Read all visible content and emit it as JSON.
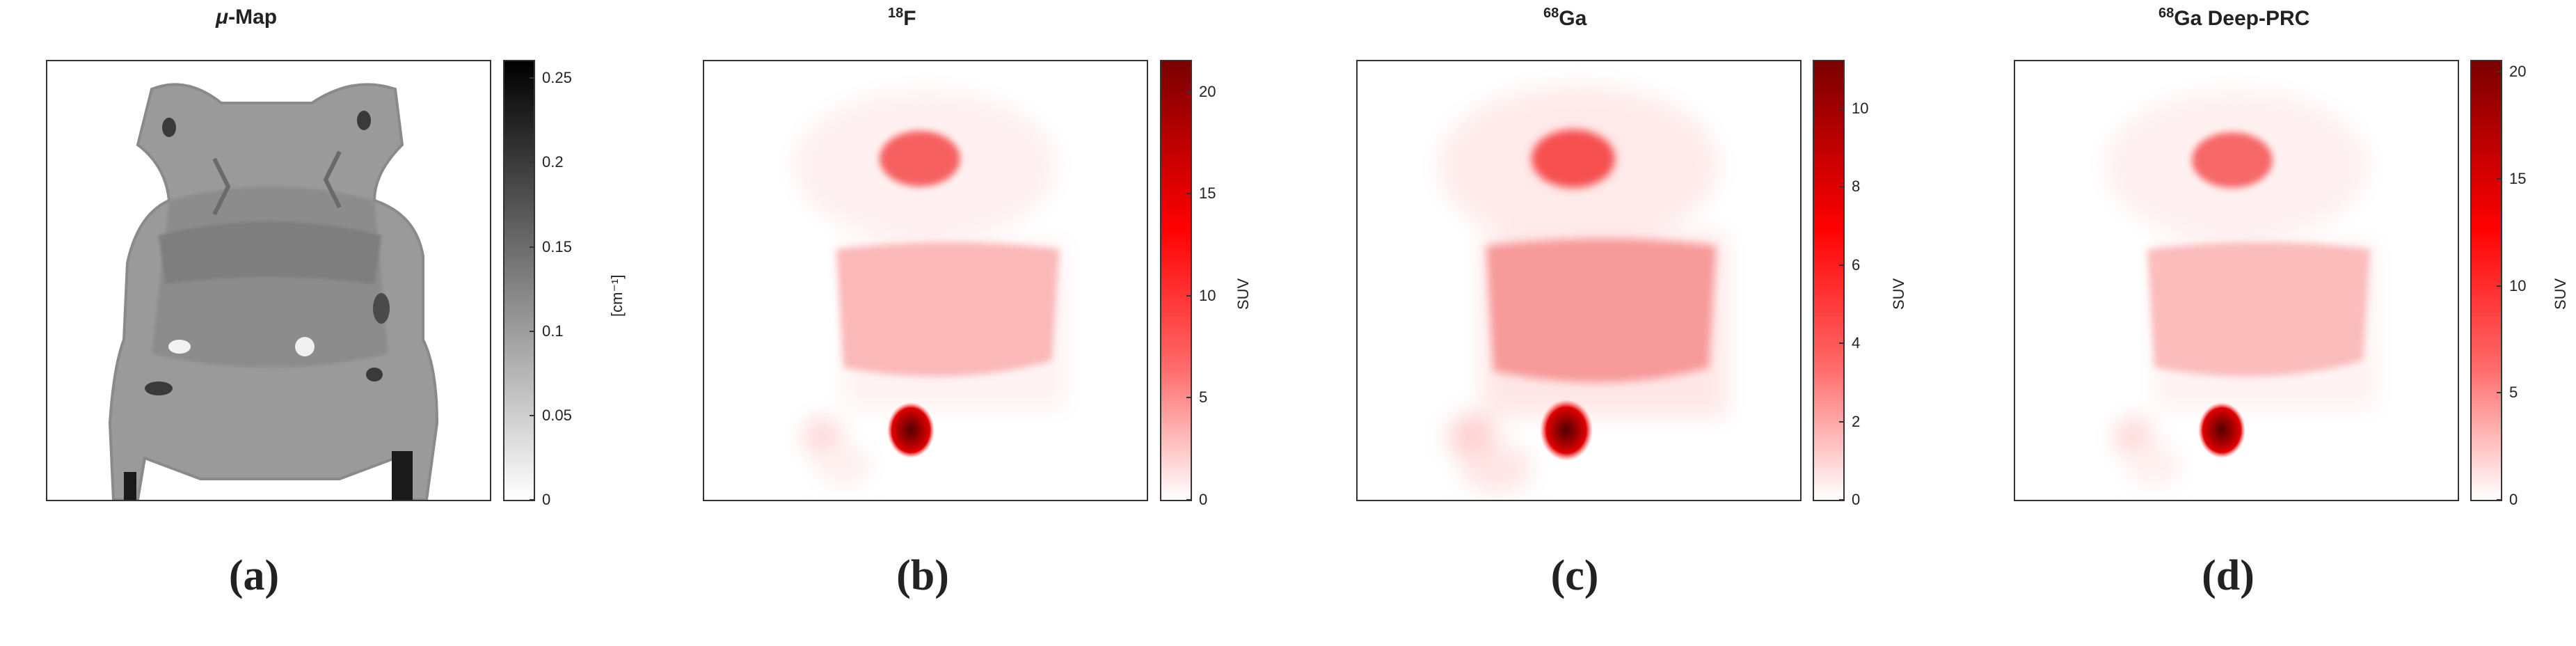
{
  "figure": {
    "panels": [
      {
        "id": "a",
        "title_prefix": "μ",
        "title_main": "-Map",
        "title_suffix": "",
        "label": "(a)",
        "colorbar": {
          "cmap": "gray",
          "unit_label": "[cm⁻¹]",
          "ticks": [
            "0.25",
            "0.2",
            "0.15",
            "0.1",
            "0.05",
            "0"
          ],
          "tick_values": [
            0.25,
            0.2,
            0.15,
            0.1,
            0.05,
            0
          ],
          "range": [
            0,
            0.26
          ]
        }
      },
      {
        "id": "b",
        "title_prefix": "",
        "title_sup": "18",
        "title_main": "F",
        "label": "(b)",
        "colorbar": {
          "cmap": "red",
          "unit_label": "SUV",
          "ticks": [
            "20",
            "15",
            "10",
            "5",
            "0"
          ],
          "tick_values": [
            20,
            15,
            10,
            5,
            0
          ],
          "range": [
            0,
            21.5
          ]
        }
      },
      {
        "id": "c",
        "title_prefix": "",
        "title_sup": "68",
        "title_main": "Ga",
        "label": "(c)",
        "colorbar": {
          "cmap": "red",
          "unit_label": "SUV",
          "ticks": [
            "10",
            "8",
            "6",
            "4",
            "2",
            "0"
          ],
          "tick_values": [
            10,
            8,
            6,
            4,
            2,
            0
          ],
          "range": [
            0,
            11.2
          ]
        }
      },
      {
        "id": "d",
        "title_prefix": "",
        "title_sup": "68",
        "title_main": "Ga Deep-PRC",
        "label": "(d)",
        "colorbar": {
          "cmap": "red",
          "unit_label": "SUV",
          "ticks": [
            "20",
            "15",
            "10",
            "5",
            "0"
          ],
          "tick_values": [
            20,
            15,
            10,
            5,
            0
          ],
          "range": [
            0,
            20.5
          ]
        }
      }
    ],
    "colors": {
      "red_max": "#7a0000",
      "red_mid": "#ff0000",
      "red_min": "#ffffff",
      "gray_max": "#000000",
      "gray_min": "#ffffff",
      "frame": "#333333"
    }
  }
}
